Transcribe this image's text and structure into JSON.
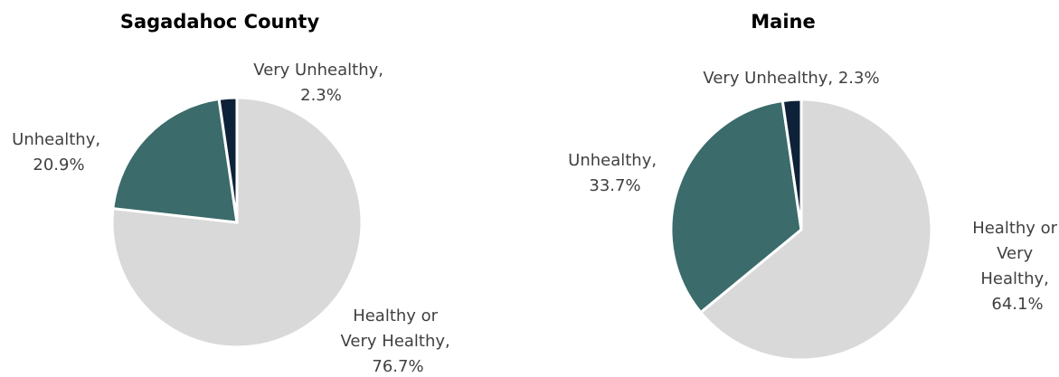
{
  "chart_data": [
    {
      "type": "pie",
      "title": "Sagadahoc County",
      "categories": [
        "Healthy or Very Healthy",
        "Unhealthy",
        "Very Unhealthy"
      ],
      "values": [
        76.7,
        20.9,
        2.3
      ],
      "data_labels": [
        "Healthy or Very Healthy, 76.7%",
        "Unhealthy, 20.9%",
        "Very Unhealthy, 2.3%"
      ],
      "colors": [
        "#d9d9d9",
        "#3b6b6b",
        "#0d2238"
      ]
    },
    {
      "type": "pie",
      "title": "Maine",
      "categories": [
        "Healthy or Very Healthy",
        "Unhealthy",
        "Very Unhealthy"
      ],
      "values": [
        64.1,
        33.7,
        2.3
      ],
      "data_labels": [
        "Healthy or Very Healthy, 64.1%",
        "Unhealthy, 33.7%",
        "Very Unhealthy, 2.3%"
      ],
      "colors": [
        "#d9d9d9",
        "#3b6b6b",
        "#0d2238"
      ]
    }
  ]
}
